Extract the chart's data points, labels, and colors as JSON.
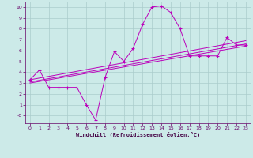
{
  "background_color": "#cceae8",
  "grid_color": "#aacccc",
  "line_color": "#bb00bb",
  "xlabel": "Windchill (Refroidissement éolien,°C)",
  "ylim": [
    -0.7,
    10.5
  ],
  "xlim": [
    -0.5,
    23.5
  ],
  "yticks": [
    0,
    1,
    2,
    3,
    4,
    5,
    6,
    7,
    8,
    9,
    10
  ],
  "xticks": [
    0,
    1,
    2,
    3,
    4,
    5,
    6,
    7,
    8,
    9,
    10,
    11,
    12,
    13,
    14,
    15,
    16,
    17,
    18,
    19,
    20,
    21,
    22,
    23
  ],
  "curve1_x": [
    0,
    1,
    2,
    3,
    4,
    5,
    6,
    7,
    8,
    9,
    10,
    11,
    12,
    13,
    14,
    15,
    16,
    17,
    18,
    19,
    20,
    21,
    22,
    23
  ],
  "curve1_y": [
    3.3,
    4.2,
    2.6,
    2.6,
    2.6,
    2.6,
    1.0,
    -0.4,
    3.5,
    5.9,
    5.0,
    6.2,
    8.4,
    10.0,
    10.1,
    9.5,
    8.0,
    5.5,
    5.5,
    5.5,
    5.5,
    7.2,
    6.5,
    6.5
  ],
  "curve2_x": [
    0,
    23
  ],
  "curve2_y": [
    3.1,
    6.6
  ],
  "curve3_x": [
    0,
    23
  ],
  "curve3_y": [
    3.3,
    6.9
  ],
  "curve4_x": [
    0,
    23
  ],
  "curve4_y": [
    3.0,
    6.4
  ],
  "ylabel_neg0": true,
  "spine_color": "#660066",
  "tick_color": "#660066",
  "label_color": "#440044",
  "figsize": [
    3.2,
    2.0
  ],
  "dpi": 100
}
